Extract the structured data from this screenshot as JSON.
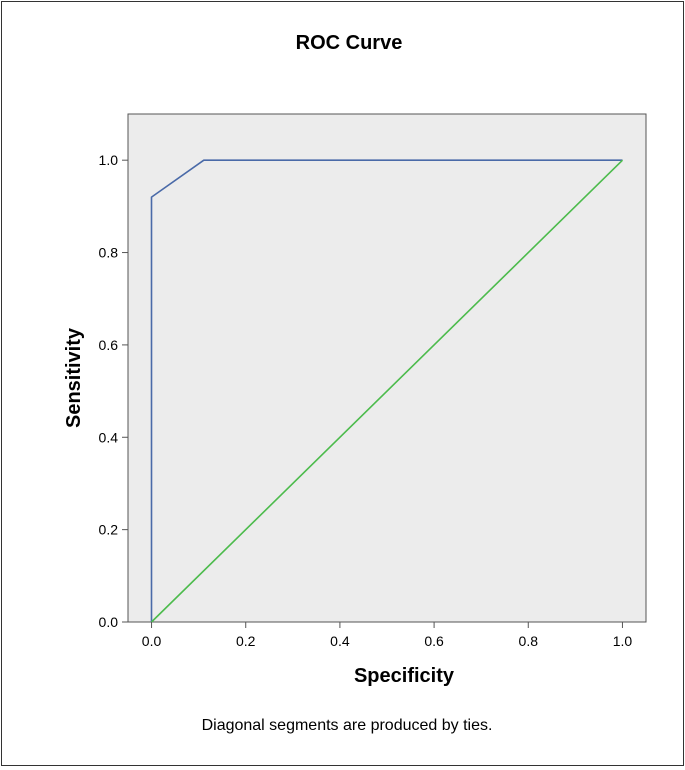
{
  "chart_data": {
    "type": "line",
    "title": "ROC Curve",
    "xlabel": "Specificity",
    "ylabel": "Sensitivity",
    "xlim": [
      -0.05,
      1.05
    ],
    "ylim": [
      0.0,
      1.1
    ],
    "xticks": [
      {
        "value": 0.0,
        "label": "0.0"
      },
      {
        "value": 0.2,
        "label": "0.2"
      },
      {
        "value": 0.4,
        "label": "0.4"
      },
      {
        "value": 0.6,
        "label": "0.6"
      },
      {
        "value": 0.8,
        "label": "0.8"
      },
      {
        "value": 1.0,
        "label": "1.0"
      }
    ],
    "yticks": [
      {
        "value": 0.0,
        "label": "0.0"
      },
      {
        "value": 0.2,
        "label": "0.2"
      },
      {
        "value": 0.4,
        "label": "0.4"
      },
      {
        "value": 0.6,
        "label": "0.6"
      },
      {
        "value": 0.8,
        "label": "0.8"
      },
      {
        "value": 1.0,
        "label": "1.0"
      }
    ],
    "grid": false,
    "series": [
      {
        "color": "#4a6aa8",
        "x": [
          0.0,
          0.0,
          0.111,
          1.0
        ],
        "y": [
          0.0,
          0.92,
          1.0,
          1.0
        ]
      },
      {
        "color": "#4cbb4c",
        "x": [
          0.0,
          1.0
        ],
        "y": [
          0.0,
          1.0
        ]
      }
    ],
    "annotations": [
      "Diagonal segments are produced by ties."
    ]
  },
  "colors": {
    "plot_background": "#ececec",
    "axis": "#555555"
  }
}
